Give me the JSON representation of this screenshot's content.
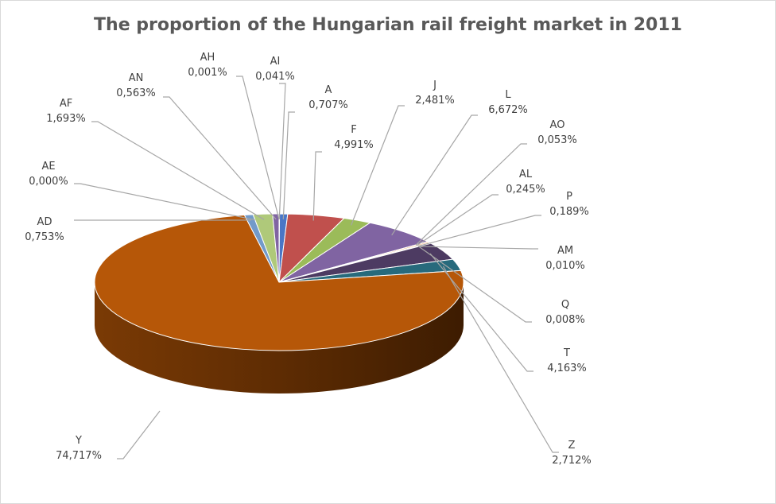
{
  "chart_data": {
    "type": "pie",
    "title": "The proportion of the Hungarian rail freight market in 2011",
    "slices": [
      {
        "name": "AI",
        "label": "0,041%",
        "value": 0.041,
        "color": "#4472c4"
      },
      {
        "name": "A",
        "label": "0,707%",
        "value": 0.707,
        "color": "#4a76c6"
      },
      {
        "name": "F",
        "label": "4,991%",
        "value": 4.991,
        "color": "#c0504d"
      },
      {
        "name": "J",
        "label": "2,481%",
        "value": 2.481,
        "color": "#9bbb59"
      },
      {
        "name": "L",
        "label": "6,672%",
        "value": 6.672,
        "color": "#8064a2"
      },
      {
        "name": "AO",
        "label": "0,053%",
        "value": 0.053,
        "color": "#4bacc6"
      },
      {
        "name": "AL",
        "label": "0,245%",
        "value": 0.245,
        "color": "#f79646"
      },
      {
        "name": "P",
        "label": "0,189%",
        "value": 0.189,
        "color": "#2c4d75"
      },
      {
        "name": "AM",
        "label": "0,010%",
        "value": 0.01,
        "color": "#772c2a"
      },
      {
        "name": "Q",
        "label": "0,008%",
        "value": 0.008,
        "color": "#5f7530"
      },
      {
        "name": "T",
        "label": "4,163%",
        "value": 4.163,
        "color": "#4d3b62"
      },
      {
        "name": "Z",
        "label": "2,712%",
        "value": 2.712,
        "color": "#276a7c"
      },
      {
        "name": "Y",
        "label": "74,717%",
        "value": 74.717,
        "color": "#b65708"
      },
      {
        "name": "AD",
        "label": "0,753%",
        "value": 0.753,
        "color": "#729aca"
      },
      {
        "name": "AE",
        "label": "0,000%",
        "value": 0.0,
        "color": "#d99694"
      },
      {
        "name": "AF",
        "label": "1,693%",
        "value": 1.693,
        "color": "#afc97a"
      },
      {
        "name": "AN",
        "label": "0,563%",
        "value": 0.563,
        "color": "#8064a2"
      },
      {
        "name": "AH",
        "label": "0,001%",
        "value": 0.001,
        "color": "#4bacc6"
      }
    ]
  }
}
